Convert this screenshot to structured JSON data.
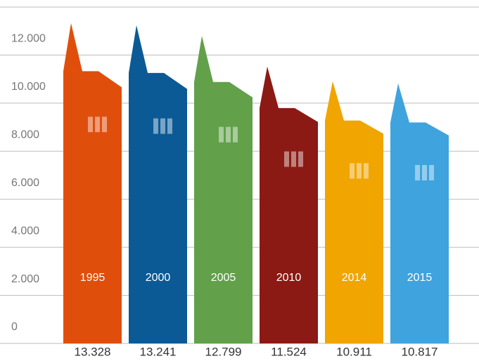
{
  "chart_data": {
    "type": "building-bar",
    "categories": [
      "1995",
      "2000",
      "2005",
      "2010",
      "2014",
      "2015"
    ],
    "values": [
      13328,
      13241,
      12799,
      11524,
      10911,
      10817
    ],
    "value_labels": [
      "13.328",
      "13.241",
      "12.799",
      "11.524",
      "10.911",
      "10.817"
    ],
    "colors": [
      "#e04e0c",
      "#0b5a96",
      "#62a04a",
      "#8b1a14",
      "#f0a500",
      "#3fa3de"
    ],
    "ylim": [
      0,
      14000
    ],
    "yticks": [
      {
        "value": 0,
        "label": "0"
      },
      {
        "value": 2000,
        "label": "2.000"
      },
      {
        "value": 4000,
        "label": "4.000"
      },
      {
        "value": 6000,
        "label": "6.000"
      },
      {
        "value": 8000,
        "label": "8.000"
      },
      {
        "value": 10000,
        "label": "10.000"
      },
      {
        "value": 12000,
        "label": "12.000"
      }
    ],
    "grid": true
  }
}
